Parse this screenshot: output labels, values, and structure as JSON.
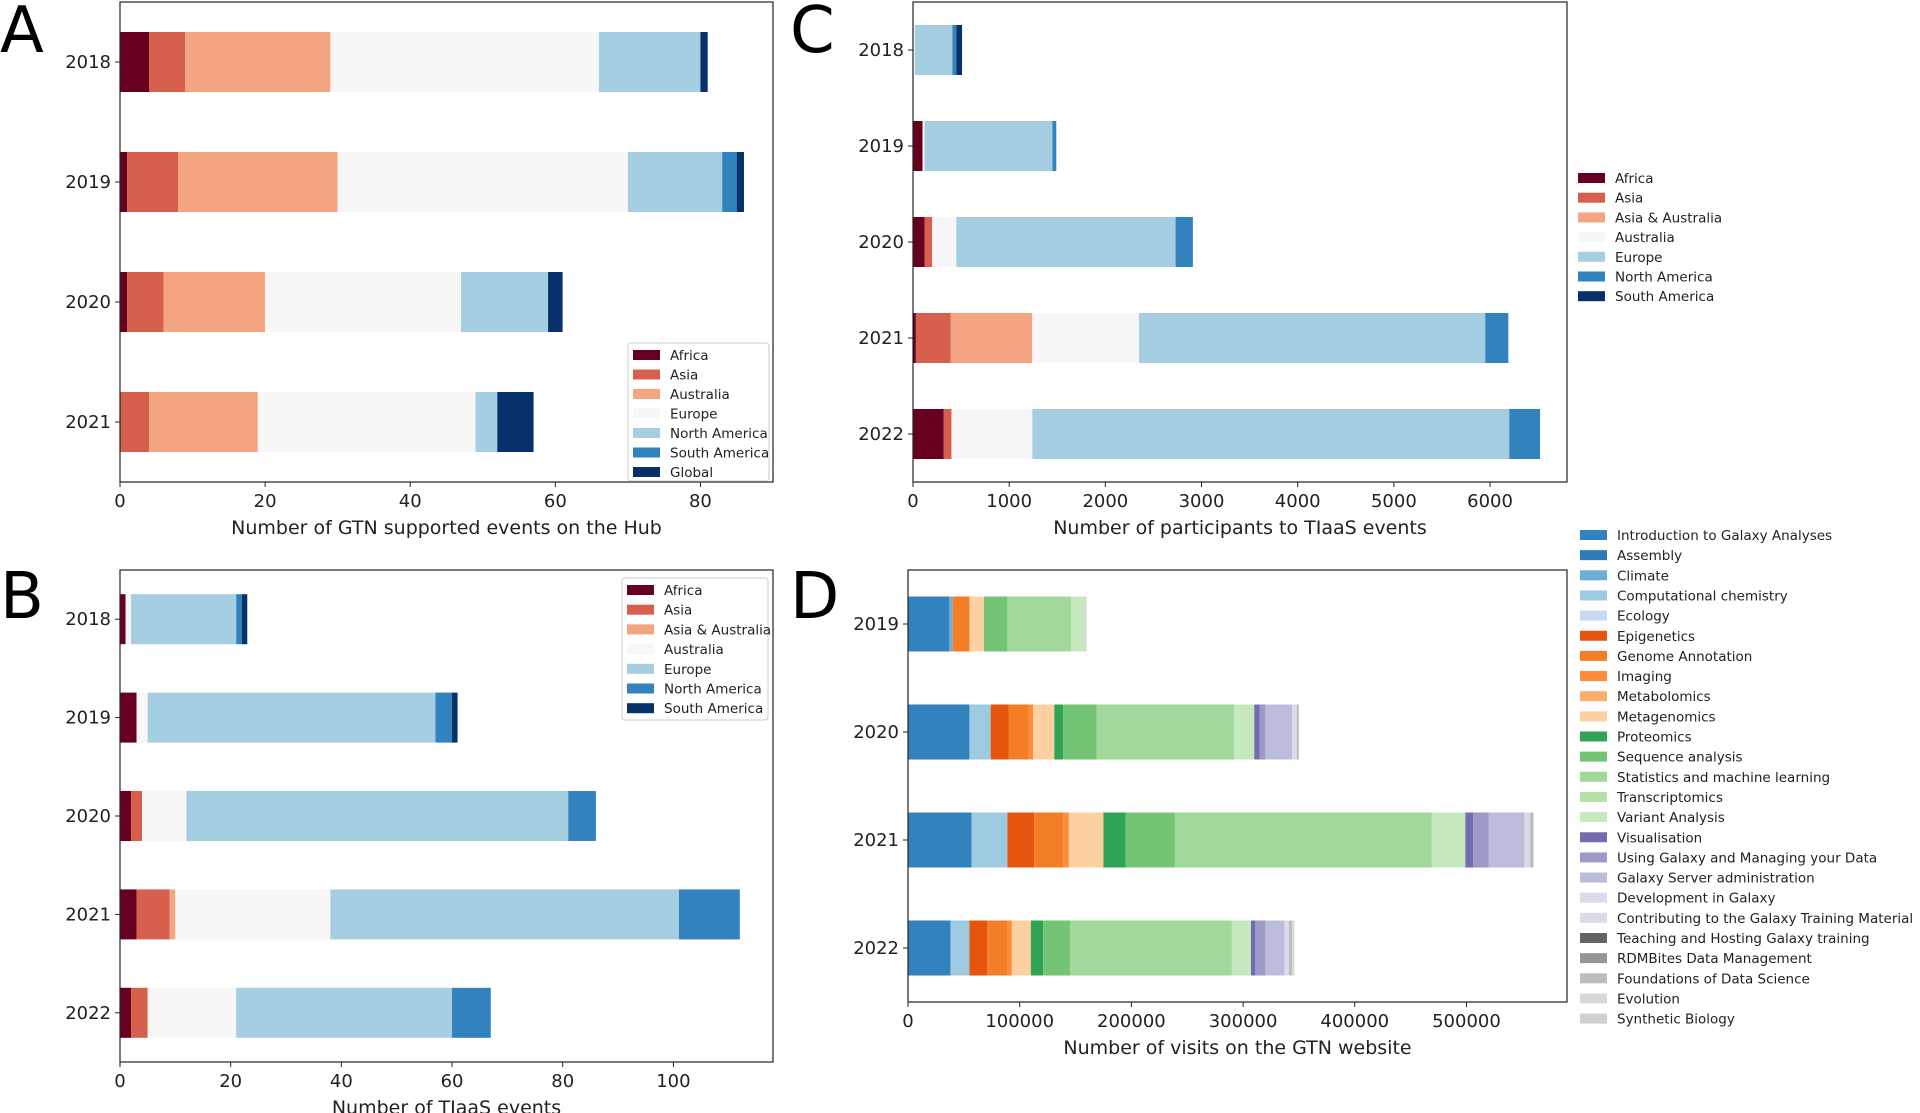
{
  "panel_labels": [
    "A",
    "B",
    "C",
    "D"
  ],
  "chart_data": [
    {
      "id": "A",
      "type": "bar",
      "orientation": "horizontal",
      "stacked": true,
      "title": "",
      "xlabel": "Number of GTN supported events on the Hub",
      "ylabel": "",
      "categories": [
        "2018",
        "2019",
        "2020",
        "2021"
      ],
      "xlim": [
        0,
        90
      ],
      "xticks": [
        0,
        20,
        40,
        60,
        80
      ],
      "legend_position": "lower-right",
      "series": [
        {
          "name": "Africa",
          "color": "#67001f",
          "values": [
            4,
            1,
            1,
            0
          ]
        },
        {
          "name": "Asia",
          "color": "#d6604d",
          "values": [
            5,
            7,
            5,
            4
          ]
        },
        {
          "name": "Australia",
          "color": "#f4a582",
          "values": [
            20,
            22,
            14,
            15
          ]
        },
        {
          "name": "Europe",
          "color": "#f7f7f7",
          "values": [
            37,
            40,
            27,
            30
          ]
        },
        {
          "name": "North America",
          "color": "#a6cee3",
          "values": [
            14,
            13,
            12,
            3
          ]
        },
        {
          "name": "South America",
          "color": "#3182bd",
          "values": [
            0,
            2,
            0,
            0
          ]
        },
        {
          "name": "Global",
          "color": "#08306b",
          "values": [
            1,
            1,
            2,
            5
          ]
        }
      ]
    },
    {
      "id": "B",
      "type": "bar",
      "orientation": "horizontal",
      "stacked": true,
      "title": "",
      "xlabel": "Number of TIaaS events",
      "ylabel": "",
      "categories": [
        "2018",
        "2019",
        "2020",
        "2021",
        "2022"
      ],
      "xlim": [
        0,
        118
      ],
      "xticks": [
        0,
        20,
        40,
        60,
        80,
        100
      ],
      "legend_position": "upper-right",
      "series": [
        {
          "name": "Africa",
          "color": "#67001f",
          "values": [
            1,
            3,
            2,
            3,
            2
          ]
        },
        {
          "name": "Asia",
          "color": "#d6604d",
          "values": [
            0,
            0,
            2,
            6,
            3
          ]
        },
        {
          "name": "Asia & Australia",
          "color": "#f4a582",
          "values": [
            0,
            0,
            0,
            1,
            0
          ]
        },
        {
          "name": "Australia",
          "color": "#f7f7f7",
          "values": [
            1,
            2,
            8,
            28,
            16
          ]
        },
        {
          "name": "Europe",
          "color": "#a6cee3",
          "values": [
            19,
            52,
            69,
            63,
            39
          ]
        },
        {
          "name": "North America",
          "color": "#3182bd",
          "values": [
            1,
            3,
            5,
            11,
            7
          ]
        },
        {
          "name": "South America",
          "color": "#08306b",
          "values": [
            1,
            1,
            0,
            0,
            0
          ]
        }
      ]
    },
    {
      "id": "C",
      "type": "bar",
      "orientation": "horizontal",
      "stacked": true,
      "title": "",
      "xlabel": "Number of participants to TIaaS events",
      "ylabel": "",
      "categories": [
        "2018",
        "2019",
        "2020",
        "2021",
        "2022"
      ],
      "xlim": [
        0,
        6800
      ],
      "xticks": [
        0,
        1000,
        2000,
        3000,
        4000,
        5000,
        6000
      ],
      "legend_position": "outside-right",
      "series": [
        {
          "name": "Africa",
          "color": "#67001f",
          "values": [
            0,
            100,
            120,
            30,
            320
          ]
        },
        {
          "name": "Asia",
          "color": "#d6604d",
          "values": [
            0,
            0,
            80,
            360,
            80
          ]
        },
        {
          "name": "Asia & Australia",
          "color": "#f4a582",
          "values": [
            0,
            0,
            0,
            850,
            0
          ]
        },
        {
          "name": "Australia",
          "color": "#f7f7f7",
          "values": [
            20,
            20,
            250,
            1110,
            840
          ]
        },
        {
          "name": "Europe",
          "color": "#a6cee3",
          "values": [
            390,
            1330,
            2280,
            3600,
            4960
          ]
        },
        {
          "name": "North America",
          "color": "#3182bd",
          "values": [
            40,
            40,
            180,
            240,
            320
          ]
        },
        {
          "name": "South America",
          "color": "#08306b",
          "values": [
            60,
            0,
            0,
            0,
            0
          ]
        }
      ]
    },
    {
      "id": "D",
      "type": "bar",
      "orientation": "horizontal",
      "stacked": true,
      "title": "",
      "xlabel": "Number of visits on the GTN website",
      "ylabel": "",
      "categories": [
        "2019",
        "2020",
        "2021",
        "2022"
      ],
      "xlim": [
        0,
        590000
      ],
      "xticks": [
        0,
        100000,
        200000,
        300000,
        400000,
        500000
      ],
      "legend_position": "outside-right",
      "series": [
        {
          "name": "Introduction to Galaxy Analyses",
          "color": "#3182bd",
          "values": [
            37000,
            55000,
            57000,
            38000
          ]
        },
        {
          "name": "Assembly",
          "color": "#2b7bba",
          "values": [
            0,
            0,
            0,
            0
          ]
        },
        {
          "name": "Climate",
          "color": "#6baed6",
          "values": [
            3000,
            0,
            0,
            0
          ]
        },
        {
          "name": "Computational chemistry",
          "color": "#9ecae1",
          "values": [
            0,
            19000,
            32000,
            17000
          ]
        },
        {
          "name": "Ecology",
          "color": "#c6dbef",
          "values": [
            0,
            0,
            0,
            0
          ]
        },
        {
          "name": "Epigenetics",
          "color": "#e6550d",
          "values": [
            0,
            16000,
            24000,
            16000
          ]
        },
        {
          "name": "Genome Annotation",
          "color": "#f47e26",
          "values": [
            15000,
            18000,
            26000,
            18000
          ]
        },
        {
          "name": "Imaging",
          "color": "#fd8d3c",
          "values": [
            0,
            4000,
            5000,
            4000
          ]
        },
        {
          "name": "Metabolomics",
          "color": "#fdae6b",
          "values": [
            0,
            0,
            0,
            0
          ]
        },
        {
          "name": "Metagenomics",
          "color": "#fdd0a2",
          "values": [
            13000,
            19000,
            31000,
            17000
          ]
        },
        {
          "name": "Proteomics",
          "color": "#31a354",
          "values": [
            0,
            8000,
            20000,
            11000
          ]
        },
        {
          "name": "Sequence analysis",
          "color": "#74c476",
          "values": [
            21000,
            30000,
            44000,
            24000
          ]
        },
        {
          "name": "Statistics and machine learning",
          "color": "#a1d99b",
          "values": [
            57000,
            123000,
            230000,
            145000
          ]
        },
        {
          "name": "Transcriptomics",
          "color": "#b5e0a8",
          "values": [
            0,
            0,
            0,
            0
          ]
        },
        {
          "name": "Variant Analysis",
          "color": "#c7e9c0",
          "values": [
            12000,
            18000,
            30000,
            17000
          ]
        },
        {
          "name": "Visualisation",
          "color": "#756bb1",
          "values": [
            0,
            5000,
            7000,
            4000
          ]
        },
        {
          "name": "Using Galaxy and Managing your Data",
          "color": "#9e9ac8",
          "values": [
            0,
            5000,
            14000,
            9000
          ]
        },
        {
          "name": "Galaxy Server administration",
          "color": "#bcbddc",
          "values": [
            0,
            24000,
            32000,
            17000
          ]
        },
        {
          "name": "Development in Galaxy",
          "color": "#dadaeb",
          "values": [
            0,
            4000,
            5000,
            4000
          ]
        },
        {
          "name": "Contributing to the Galaxy Training Material",
          "color": "#dcdce8",
          "values": [
            0,
            0,
            0,
            0
          ]
        },
        {
          "name": "Teaching and Hosting Galaxy training",
          "color": "#636363",
          "values": [
            0,
            0,
            0,
            0
          ]
        },
        {
          "name": "RDMBites Data Management",
          "color": "#969696",
          "values": [
            0,
            0,
            0,
            0
          ]
        },
        {
          "name": "Foundations of Data Science",
          "color": "#bdbdbd",
          "values": [
            0,
            2000,
            3000,
            3000
          ]
        },
        {
          "name": "Evolution",
          "color": "#d9d9d9",
          "values": [
            2000,
            0,
            0,
            2000
          ]
        },
        {
          "name": "Synthetic Biology",
          "color": "#d0d0d0",
          "values": [
            0,
            0,
            0,
            0
          ]
        }
      ]
    }
  ]
}
